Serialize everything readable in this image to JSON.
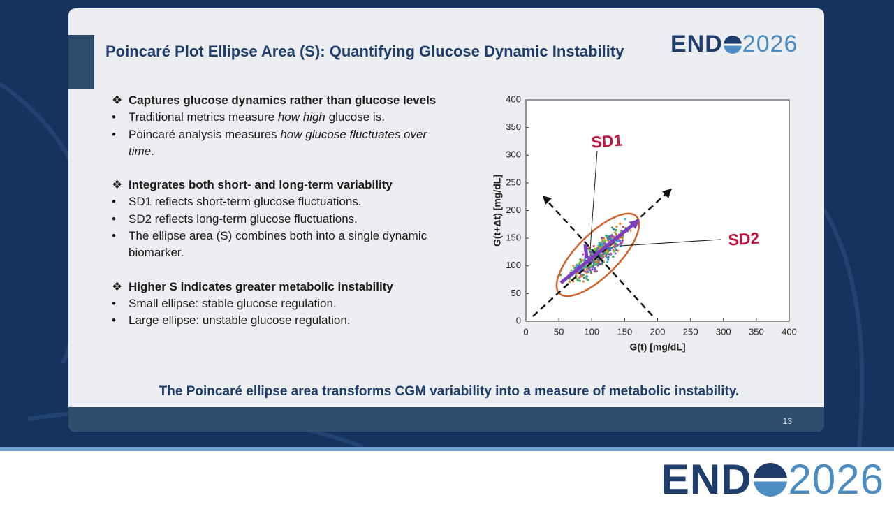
{
  "slide": {
    "title": "Poincaré Plot Ellipse Area (S): Quantifying Glucose Dynamic Instability",
    "logo": [
      "END",
      "2026"
    ],
    "sections": [
      {
        "heading": "Captures glucose dynamics rather than glucose levels",
        "bullets": [
          [
            "Traditional metrics measure ",
            "how high",
            " glucose is."
          ],
          [
            "Poincaré analysis measures ",
            "how glucose fluctuates over time",
            "."
          ]
        ]
      },
      {
        "heading": "Integrates both short- and long-term variability",
        "bullets": [
          [
            "SD1 reflects short-term glucose fluctuations."
          ],
          [
            "SD2 reflects long-term glucose fluctuations."
          ],
          [
            "The ellipse area (S) combines both into a single dynamic biomarker."
          ]
        ]
      },
      {
        "heading": "Higher S indicates greater metabolic instability",
        "bullets": [
          [
            "Small ellipse: stable glucose regulation."
          ],
          [
            "Large ellipse: unstable glucose regulation."
          ]
        ]
      }
    ],
    "chart": {
      "type": "scatter",
      "xlabel": "G(t) [mg/dL]",
      "ylabel": "G(t+Δt) [mg/dL]",
      "xlim": [
        0,
        400
      ],
      "ylim": [
        0,
        400
      ],
      "xticks": [
        0,
        50,
        100,
        150,
        200,
        250,
        300,
        350,
        400
      ],
      "yticks": [
        0,
        50,
        100,
        150,
        200,
        250,
        300,
        350,
        400
      ],
      "annotations": [
        "SD1",
        "SD2"
      ]
    },
    "conclusion": "The Poincaré ellipse area transforms CGM variability into a measure of metabolic instability.",
    "page_number": 13
  },
  "banner": {
    "logo": [
      "END",
      "2026"
    ]
  }
}
